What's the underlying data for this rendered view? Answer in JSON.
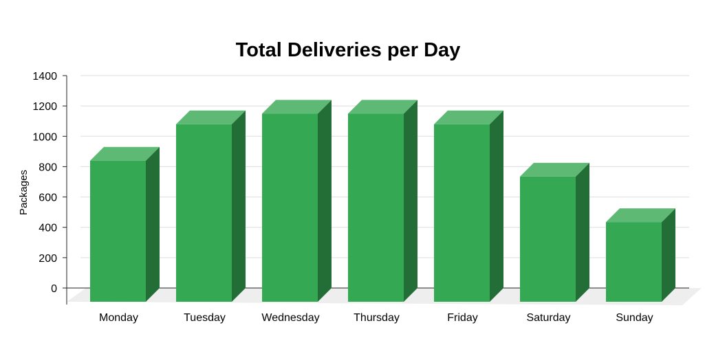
{
  "chart_data": {
    "type": "bar",
    "title": "Total Deliveries per Day",
    "xlabel": "",
    "ylabel": "Packages",
    "categories": [
      "Monday",
      "Tuesday",
      "Wednesday",
      "Thursday",
      "Friday",
      "Saturday",
      "Sunday"
    ],
    "values": [
      930,
      1170,
      1240,
      1240,
      1170,
      825,
      525
    ],
    "ylim": [
      0,
      1400
    ],
    "yticks": [
      0,
      200,
      400,
      600,
      800,
      1000,
      1200,
      1400
    ],
    "grid": true,
    "legend": "none",
    "style": "3d",
    "colors": {
      "bar_front": "#35a853",
      "bar_top": "#5db973",
      "bar_side": "#236e37",
      "floor": "#eeeeee",
      "grid": "#dddddd",
      "axis": "#222222"
    }
  }
}
